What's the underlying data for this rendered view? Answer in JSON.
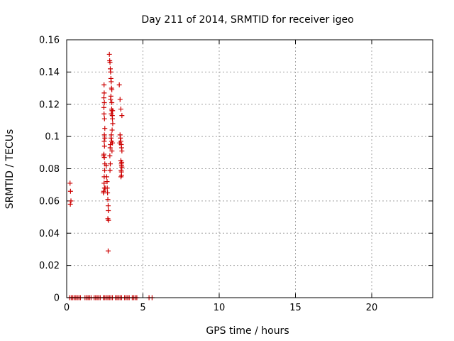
{
  "chart_data": {
    "type": "scatter",
    "title": "Day 211 of 2014, SRMTID for receiver igeo",
    "xlabel": "GPS time / hours",
    "ylabel": "SRMTID / TECUs",
    "xlim": [
      0,
      24
    ],
    "ylim": [
      0,
      0.16
    ],
    "x_ticks": [
      0,
      5,
      10,
      15,
      20
    ],
    "y_ticks": [
      0,
      0.02,
      0.04,
      0.06,
      0.08,
      0.1,
      0.12,
      0.14,
      0.16
    ],
    "x_tick_labels": [
      "0",
      "5",
      "10",
      "15",
      "20"
    ],
    "y_tick_labels": [
      "0",
      "0.02",
      "0.04",
      "0.06",
      "0.08",
      "0.1",
      "0.12",
      "0.14",
      "0.16"
    ],
    "grid": true,
    "legend": "none",
    "marker": "plus",
    "marker_color": "#cc0000",
    "points": [
      [
        0.22,
        0.071
      ],
      [
        0.25,
        0.066
      ],
      [
        0.28,
        0.06
      ],
      [
        0.24,
        0.058
      ],
      [
        0.2,
        0
      ],
      [
        0.3,
        0
      ],
      [
        0.4,
        0
      ],
      [
        0.5,
        0
      ],
      [
        0.6,
        0
      ],
      [
        0.7,
        0
      ],
      [
        0.8,
        0
      ],
      [
        0.9,
        0
      ],
      [
        1.2,
        0
      ],
      [
        1.3,
        0
      ],
      [
        1.4,
        0
      ],
      [
        1.5,
        0
      ],
      [
        1.6,
        0
      ],
      [
        1.8,
        0
      ],
      [
        1.9,
        0
      ],
      [
        2.0,
        0
      ],
      [
        2.1,
        0
      ],
      [
        2.2,
        0
      ],
      [
        2.4,
        0
      ],
      [
        2.5,
        0
      ],
      [
        2.6,
        0
      ],
      [
        2.7,
        0
      ],
      [
        2.8,
        0
      ],
      [
        2.9,
        0
      ],
      [
        3.0,
        0
      ],
      [
        3.2,
        0
      ],
      [
        3.3,
        0
      ],
      [
        3.4,
        0
      ],
      [
        3.5,
        0
      ],
      [
        3.6,
        0
      ],
      [
        3.8,
        0
      ],
      [
        3.9,
        0
      ],
      [
        4.0,
        0
      ],
      [
        4.1,
        0
      ],
      [
        4.3,
        0
      ],
      [
        4.4,
        0
      ],
      [
        4.5,
        0
      ],
      [
        4.6,
        0
      ],
      [
        5.4,
        0
      ],
      [
        5.6,
        0
      ],
      [
        2.45,
        0.132
      ],
      [
        2.46,
        0.127
      ],
      [
        2.47,
        0.121
      ],
      [
        2.44,
        0.118
      ],
      [
        2.45,
        0.114
      ],
      [
        2.48,
        0.111
      ],
      [
        2.5,
        0.105
      ],
      [
        2.47,
        0.101
      ],
      [
        2.46,
        0.097
      ],
      [
        2.48,
        0.094
      ],
      [
        2.44,
        0.089
      ],
      [
        2.47,
        0.087
      ],
      [
        2.5,
        0.083
      ],
      [
        2.49,
        0.079
      ],
      [
        2.46,
        0.075
      ],
      [
        2.45,
        0.071
      ],
      [
        2.48,
        0.068
      ],
      [
        2.43,
        0.066
      ],
      [
        2.41,
        0.065
      ],
      [
        2.52,
        0.068
      ],
      [
        2.44,
        0.124
      ],
      [
        2.42,
        0.088
      ],
      [
        2.5,
        0.099
      ],
      [
        2.6,
        0.082
      ],
      [
        2.62,
        0.075
      ],
      [
        2.65,
        0.072
      ],
      [
        2.66,
        0.068
      ],
      [
        2.68,
        0.065
      ],
      [
        2.7,
        0.061
      ],
      [
        2.72,
        0.057
      ],
      [
        2.73,
        0.054
      ],
      [
        2.7,
        0.049
      ],
      [
        2.74,
        0.048
      ],
      [
        2.72,
        0.029
      ],
      [
        2.8,
        0.151
      ],
      [
        2.82,
        0.147
      ],
      [
        2.84,
        0.146
      ],
      [
        2.86,
        0.142
      ],
      [
        2.88,
        0.14
      ],
      [
        2.9,
        0.136
      ],
      [
        2.92,
        0.134
      ],
      [
        2.94,
        0.13
      ],
      [
        2.96,
        0.129
      ],
      [
        2.9,
        0.125
      ],
      [
        2.88,
        0.123
      ],
      [
        2.95,
        0.117
      ],
      [
        2.97,
        0.116
      ],
      [
        2.92,
        0.114
      ],
      [
        2.99,
        0.113
      ],
      [
        3.0,
        0.111
      ],
      [
        3.02,
        0.108
      ],
      [
        2.98,
        0.104
      ],
      [
        2.93,
        0.101
      ],
      [
        2.95,
        0.097
      ],
      [
        3.0,
        0.096
      ],
      [
        2.87,
        0.095
      ],
      [
        2.85,
        0.093
      ],
      [
        2.97,
        0.091
      ],
      [
        2.83,
        0.088
      ],
      [
        2.86,
        0.083
      ],
      [
        2.84,
        0.079
      ],
      [
        2.96,
        0.121
      ],
      [
        2.91,
        0.099
      ],
      [
        3.01,
        0.116
      ],
      [
        3.45,
        0.132
      ],
      [
        3.5,
        0.123
      ],
      [
        3.55,
        0.117
      ],
      [
        3.62,
        0.113
      ],
      [
        3.5,
        0.101
      ],
      [
        3.52,
        0.099
      ],
      [
        3.55,
        0.097
      ],
      [
        3.58,
        0.095
      ],
      [
        3.6,
        0.093
      ],
      [
        3.62,
        0.091
      ],
      [
        3.48,
        0.096
      ],
      [
        3.55,
        0.085
      ],
      [
        3.58,
        0.083
      ],
      [
        3.6,
        0.082
      ],
      [
        3.62,
        0.081
      ],
      [
        3.57,
        0.079
      ],
      [
        3.59,
        0.078
      ],
      [
        3.6,
        0.076
      ],
      [
        3.56,
        0.075
      ],
      [
        3.61,
        0.084
      ]
    ]
  }
}
